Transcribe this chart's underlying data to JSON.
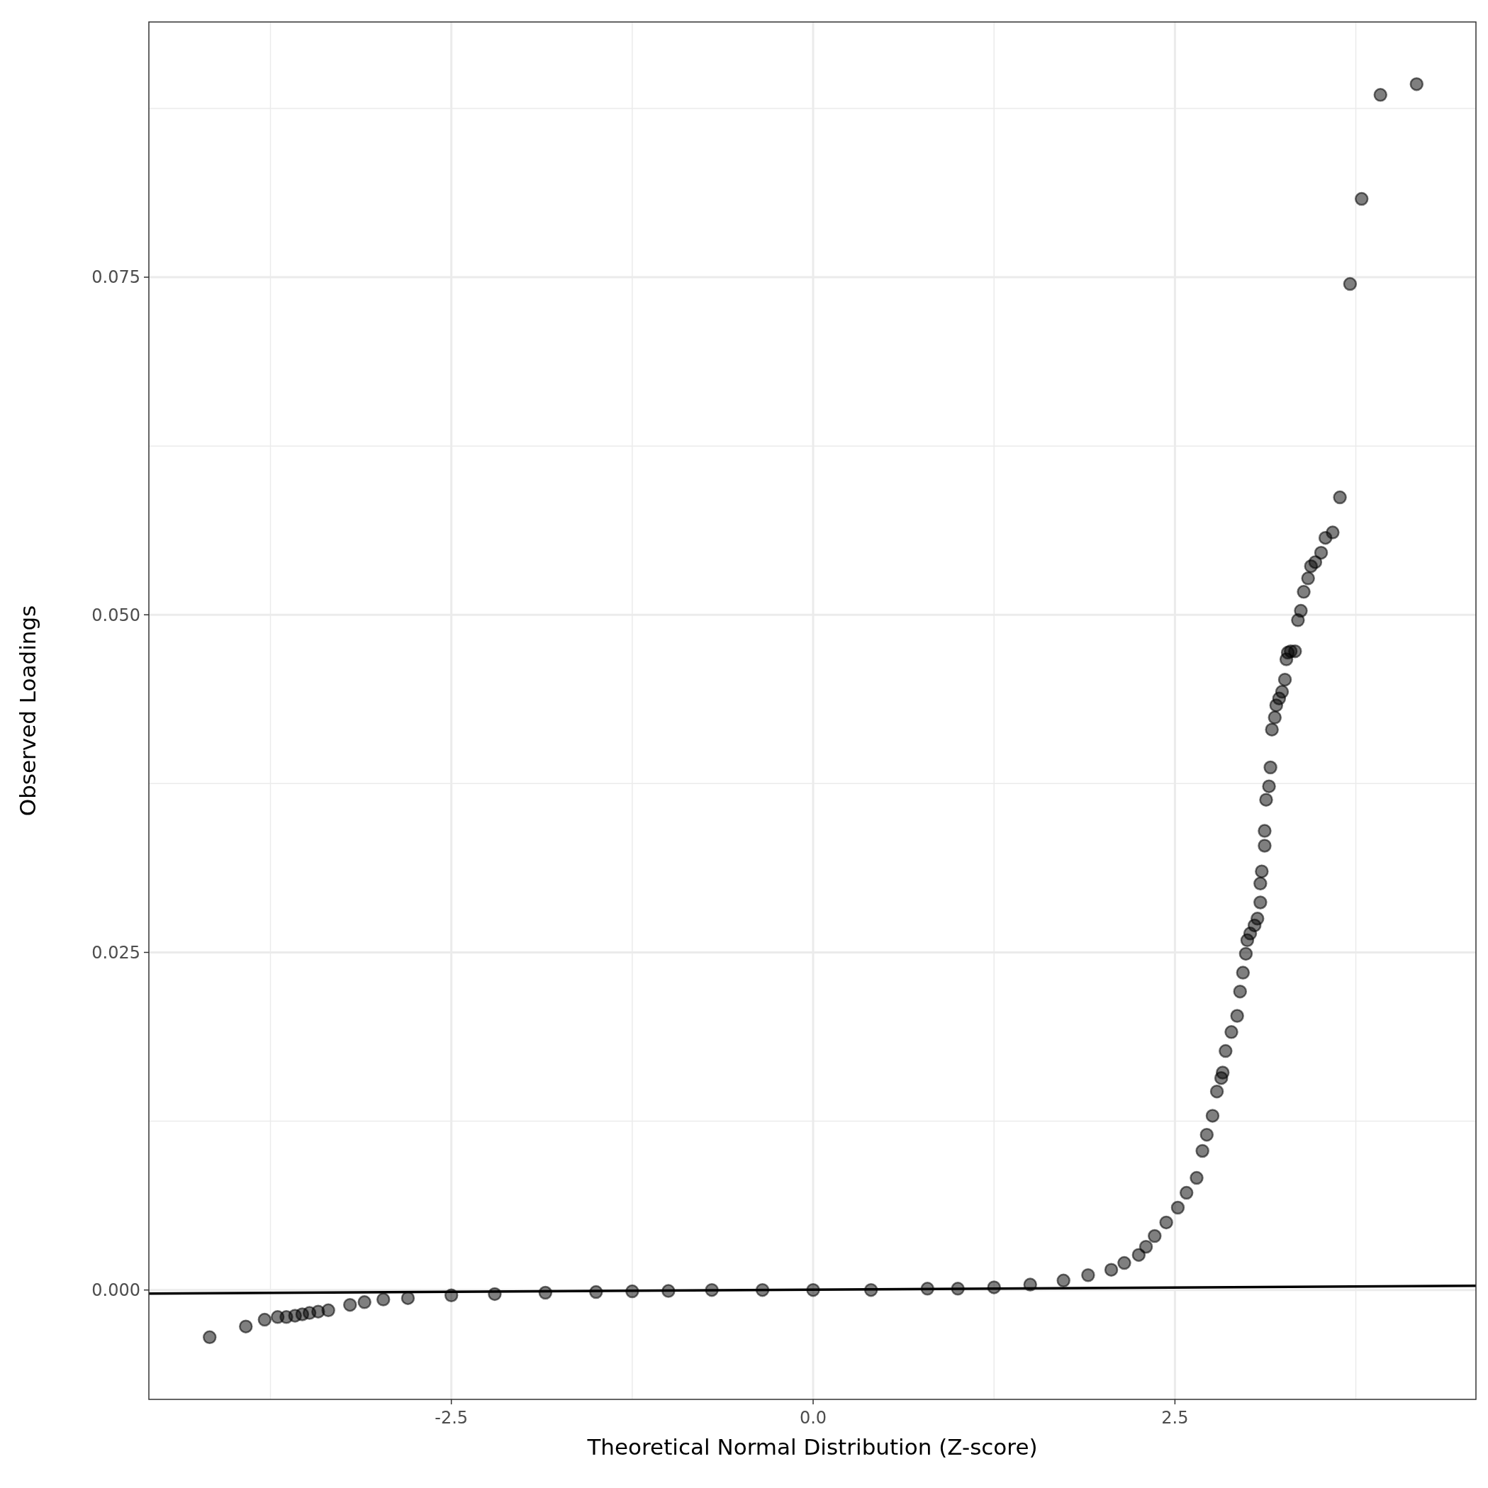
{
  "chart_data": {
    "type": "scatter",
    "xlabel": "Theoretical Normal Distribution (Z-score)",
    "ylabel": "Observed Loadings",
    "xlim": [
      -4.59,
      4.58
    ],
    "ylim": [
      -0.0081,
      0.0939
    ],
    "xticks": [
      {
        "value": -3.75,
        "label": null
      },
      -2.5,
      {
        "value": -1.25,
        "label": null
      },
      {
        "value": 0,
        "label": "0.0"
      },
      {
        "value": 1.25,
        "label": null
      },
      2.5,
      {
        "value": 3.75,
        "label": null
      }
    ],
    "yticks": [
      {
        "value": 0,
        "label": "0.000"
      },
      {
        "value": 0.0125,
        "label": null
      },
      {
        "value": 0.025,
        "label": "0.025"
      },
      {
        "value": 0.0375,
        "label": null
      },
      {
        "value": 0.05,
        "label": "0.050"
      },
      {
        "value": 0.0625,
        "label": null
      },
      {
        "value": 0.075,
        "label": "0.075"
      },
      {
        "value": 0.0875,
        "label": null
      }
    ],
    "grid": true,
    "series": [
      {
        "marker": "circle",
        "color": "#000000",
        "x": [
          -4.17,
          -3.92,
          -3.79,
          -3.7,
          -3.64,
          -3.58,
          -3.53,
          -3.48,
          -3.42,
          -3.35,
          -3.2,
          -3.1,
          -2.97,
          -2.8,
          -2.5,
          -2.2,
          -1.85,
          -1.5,
          -1.25,
          -1,
          -0.7,
          -0.35,
          0,
          0.4,
          0.79,
          1,
          1.25,
          1.5,
          1.73,
          1.9,
          2.06,
          2.15,
          2.25,
          2.3,
          2.36,
          2.44,
          2.52,
          2.58,
          2.65,
          2.69,
          2.72,
          2.76,
          2.79,
          2.82,
          2.83,
          2.85,
          2.89,
          2.93,
          2.95,
          2.97,
          2.99,
          3.0,
          3.02,
          3.05,
          3.07,
          3.09,
          3.09,
          3.1,
          3.12,
          3.12,
          3.13,
          3.15,
          3.16,
          3.17,
          3.19,
          3.2,
          3.22,
          3.24,
          3.26,
          3.27,
          3.28,
          3.3,
          3.33,
          3.35,
          3.37,
          3.39,
          3.42,
          3.44,
          3.47,
          3.51,
          3.54,
          3.59,
          3.64,
          3.71,
          3.79,
          3.92,
          4.17
        ],
        "values": [
          -0.0035,
          -0.0027,
          -0.0022,
          -0.002,
          -0.002,
          -0.0019,
          -0.0018,
          -0.0017,
          -0.0016,
          -0.0015,
          -0.0011,
          -0.0009,
          -0.0007,
          -0.0006,
          -0.0004,
          -0.0003,
          -0.0002,
          -0.00015,
          -0.0001,
          -7e-05,
          0,
          0,
          0,
          0,
          0.0001,
          0.0001,
          0.0002,
          0.0004,
          0.0007,
          0.0011,
          0.0015,
          0.002,
          0.0026,
          0.0032,
          0.004,
          0.005,
          0.0061,
          0.0072,
          0.0083,
          0.0103,
          0.0115,
          0.0129,
          0.0147,
          0.0157,
          0.0161,
          0.0177,
          0.0191,
          0.0203,
          0.0221,
          0.0235,
          0.0249,
          0.0259,
          0.0264,
          0.027,
          0.0275,
          0.0287,
          0.0301,
          0.031,
          0.0329,
          0.034,
          0.0363,
          0.0373,
          0.0387,
          0.0415,
          0.0424,
          0.0433,
          0.0438,
          0.0443,
          0.0452,
          0.0467,
          0.0472,
          0.0473,
          0.0473,
          0.0496,
          0.0503,
          0.0517,
          0.0527,
          0.0536,
          0.0539,
          0.0546,
          0.0557,
          0.0561,
          0.0587,
          0.0745,
          0.0808,
          0.0885,
          0.0893
        ]
      },
      {
        "type": "line",
        "color": "#000000",
        "x": [
          -4.59,
          4.58
        ],
        "values": [
          -0.00026,
          0.00031
        ]
      }
    ]
  }
}
